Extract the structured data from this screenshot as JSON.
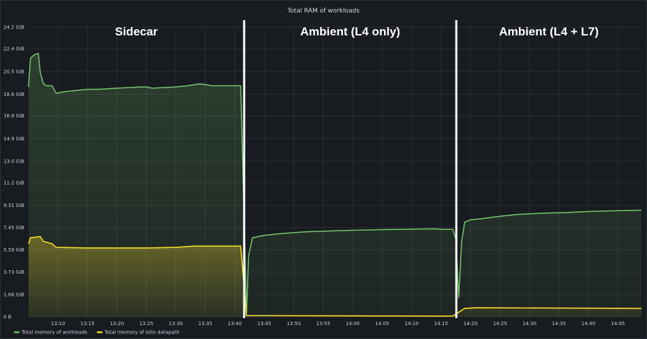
{
  "chart_data": {
    "type": "area",
    "title": "Total RAM of workloads",
    "y_unit": "GiB",
    "ylim": [
      0,
      24.2
    ],
    "y_ticks": [
      {
        "value": 24.2,
        "label": "24.2 GiB"
      },
      {
        "value": 22.4,
        "label": "22.4 GiB"
      },
      {
        "value": 20.5,
        "label": "20.5 GiB"
      },
      {
        "value": 18.6,
        "label": "18.6 GiB"
      },
      {
        "value": 16.8,
        "label": "16.8 GiB"
      },
      {
        "value": 14.9,
        "label": "14.9 GiB"
      },
      {
        "value": 13.0,
        "label": "13.0 GiB"
      },
      {
        "value": 11.2,
        "label": "11.2 GiB"
      },
      {
        "value": 9.31,
        "label": "9.31 GiB"
      },
      {
        "value": 7.45,
        "label": "7.45 GiB"
      },
      {
        "value": 5.59,
        "label": "5.59 GiB"
      },
      {
        "value": 3.73,
        "label": "3.73 GiB"
      },
      {
        "value": 1.86,
        "label": "1.86 GiB"
      },
      {
        "value": 0,
        "label": "0 B"
      }
    ],
    "xlim": [
      "13:05",
      "14:49"
    ],
    "x_ticks": [
      "13:10",
      "13:15",
      "13:20",
      "13:25",
      "13:30",
      "13:35",
      "13:40",
      "13:45",
      "13:50",
      "13:55",
      "14:00",
      "14:05",
      "14:10",
      "14:15",
      "14:20",
      "14:25",
      "14:30",
      "14:35",
      "14:40",
      "14:45"
    ],
    "grid": true,
    "legend_position": "bottom-left",
    "sections": [
      {
        "label": "Sidecar",
        "start": "13:05",
        "end": "13:41"
      },
      {
        "label": "Ambient (L4 only)",
        "start": "13:41",
        "end": "14:17"
      },
      {
        "label": "Ambient (L4 + L7)",
        "start": "14:17",
        "end": "14:49"
      }
    ],
    "series": [
      {
        "name": "Total memory of workloads",
        "color": "#73bf69",
        "points": [
          [
            "13:05",
            19.2
          ],
          [
            "13:05:20",
            21.6
          ],
          [
            "13:06",
            21.9
          ],
          [
            "13:06:40",
            22.0
          ],
          [
            "13:07",
            20.4
          ],
          [
            "13:07:30",
            19.5
          ],
          [
            "13:08",
            19.3
          ],
          [
            "13:09",
            19.3
          ],
          [
            "13:09:40",
            18.7
          ],
          [
            "13:10",
            18.7
          ],
          [
            "13:11",
            18.8
          ],
          [
            "13:13",
            18.9
          ],
          [
            "13:15",
            19.0
          ],
          [
            "13:17",
            19.0
          ],
          [
            "13:20",
            19.1
          ],
          [
            "13:22",
            19.15
          ],
          [
            "13:24",
            19.2
          ],
          [
            "13:25",
            19.2
          ],
          [
            "13:26",
            19.1
          ],
          [
            "13:28",
            19.15
          ],
          [
            "13:30",
            19.2
          ],
          [
            "13:32",
            19.3
          ],
          [
            "13:34",
            19.45
          ],
          [
            "13:35",
            19.4
          ],
          [
            "13:36",
            19.3
          ],
          [
            "13:38",
            19.3
          ],
          [
            "13:40",
            19.3
          ],
          [
            "13:41",
            19.3
          ],
          [
            "13:42",
            0.3
          ],
          [
            "13:42:20",
            5.1
          ],
          [
            "13:43",
            6.6
          ],
          [
            "13:45",
            6.8
          ],
          [
            "13:48",
            6.95
          ],
          [
            "13:52",
            7.1
          ],
          [
            "13:58",
            7.2
          ],
          [
            "14:05",
            7.28
          ],
          [
            "14:10",
            7.32
          ],
          [
            "14:14",
            7.35
          ],
          [
            "14:15",
            7.3
          ],
          [
            "14:16",
            7.3
          ],
          [
            "14:17",
            7.3
          ],
          [
            "14:17:30",
            6.5
          ],
          [
            "14:18",
            1.6
          ],
          [
            "14:18:30",
            6.3
          ],
          [
            "14:19",
            7.9
          ],
          [
            "14:20",
            8.1
          ],
          [
            "14:22",
            8.2
          ],
          [
            "14:25",
            8.4
          ],
          [
            "14:28",
            8.55
          ],
          [
            "14:32",
            8.65
          ],
          [
            "14:36",
            8.7
          ],
          [
            "14:40",
            8.8
          ],
          [
            "14:44",
            8.85
          ],
          [
            "14:49",
            8.9
          ]
        ]
      },
      {
        "name": "Total memory of Istio datapath",
        "color": "#fade2a",
        "points": [
          [
            "13:05",
            6.1
          ],
          [
            "13:05:20",
            6.6
          ],
          [
            "13:07",
            6.7
          ],
          [
            "13:07:30",
            6.3
          ],
          [
            "13:09",
            6.1
          ],
          [
            "13:09:40",
            5.8
          ],
          [
            "13:15",
            5.75
          ],
          [
            "13:25",
            5.75
          ],
          [
            "13:30",
            5.8
          ],
          [
            "13:33",
            5.9
          ],
          [
            "13:41",
            5.9
          ],
          [
            "13:42",
            0.1
          ],
          [
            "14:17",
            0.05
          ],
          [
            "14:19",
            0.7
          ],
          [
            "14:21",
            0.75
          ],
          [
            "14:49",
            0.7
          ]
        ]
      }
    ]
  }
}
